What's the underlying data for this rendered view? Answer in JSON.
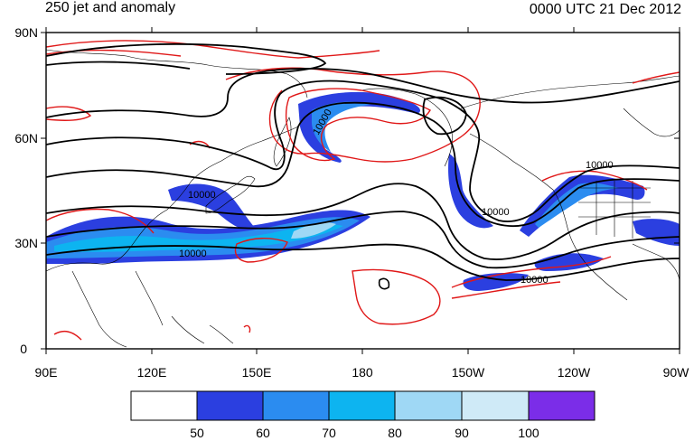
{
  "header": {
    "title": "250 jet and anomaly",
    "timestamp": "0000 UTC 21 Dec 2012"
  },
  "axes": {
    "y_ticks": [
      "90N",
      "60N",
      "30N",
      "0"
    ],
    "x_ticks": [
      "90E",
      "120E",
      "150E",
      "180",
      "150W",
      "120W",
      "90W"
    ]
  },
  "contour_labels": [
    "10000",
    "10000",
    "10000",
    "10000",
    "10000"
  ],
  "colorbar": {
    "labels": [
      "50",
      "60",
      "70",
      "80",
      "90",
      "100"
    ],
    "colors": [
      "#ffffff",
      "#2b3fe0",
      "#2b8cf0",
      "#0db4f0",
      "#9fd8f5",
      "#cfeaf7",
      "#7b2de8"
    ]
  },
  "styles": {
    "jet_colors": [
      "#2b3fe0",
      "#2b8cf0",
      "#0db4f0",
      "#9fd8f5"
    ],
    "height_contour_color": "#000000",
    "anomaly_contour_color": "#e01818",
    "coastline_color": "#000000"
  }
}
